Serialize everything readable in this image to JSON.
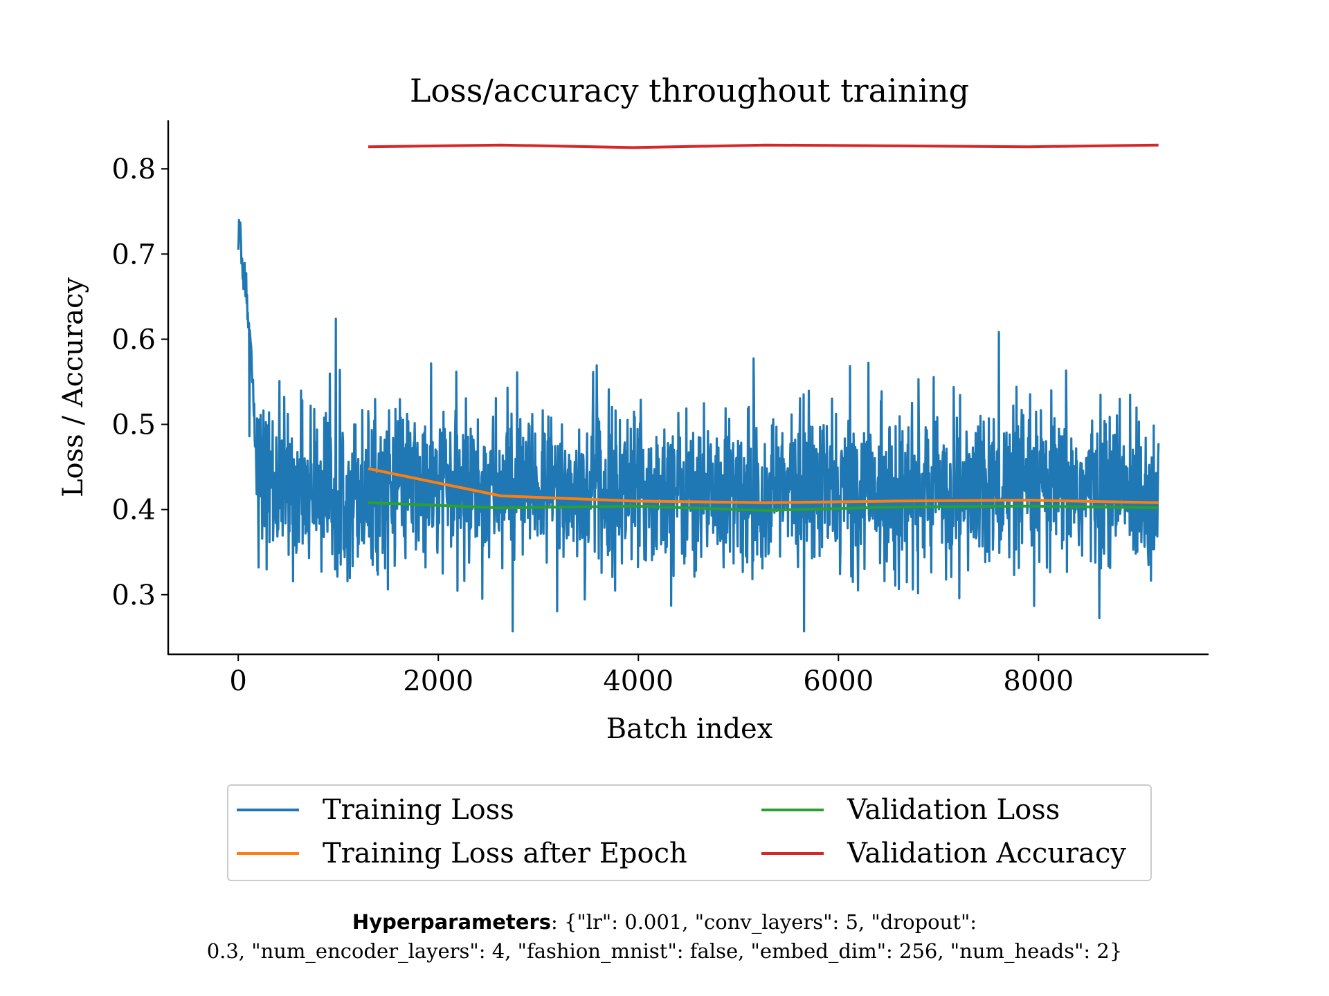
{
  "chart_data": {
    "type": "line",
    "title": "Loss/accuracy throughout training",
    "xlabel": "Batch index",
    "ylabel": "Loss / Accuracy",
    "xlim": [
      -700,
      9700
    ],
    "ylim": [
      0.23,
      0.857
    ],
    "xticks": [
      0,
      2000,
      4000,
      6000,
      8000
    ],
    "xtick_labels": [
      "0",
      "2000",
      "4000",
      "6000",
      "8000"
    ],
    "yticks": [
      0.3,
      0.4,
      0.5,
      0.6,
      0.7,
      0.8
    ],
    "ytick_labels": [
      "0.3",
      "0.4",
      "0.5",
      "0.6",
      "0.7",
      "0.8"
    ],
    "series": [
      {
        "name": "Training Loss",
        "color": "#1f77b4",
        "style": "noisy",
        "x": [
          0,
          20,
          40,
          60,
          80,
          100,
          130,
          160,
          200,
          300,
          500,
          1000,
          1300,
          2000,
          3000,
          5000,
          7000,
          9200
        ],
        "values": [
          0.71,
          0.73,
          0.69,
          0.68,
          0.66,
          0.63,
          0.58,
          0.5,
          0.44,
          0.43,
          0.425,
          0.425,
          0.425,
          0.424,
          0.423,
          0.422,
          0.422,
          0.422
        ],
        "noise_std": 0.045,
        "min": 0.257,
        "max": 0.754
      },
      {
        "name": "Training Loss after Epoch",
        "color": "#ff7f0e",
        "x": [
          1300,
          2630,
          3950,
          5270,
          6580,
          7900,
          9200
        ],
        "values": [
          0.448,
          0.416,
          0.41,
          0.408,
          0.41,
          0.411,
          0.408
        ]
      },
      {
        "name": "Validation Loss",
        "color": "#2ca02c",
        "x": [
          1300,
          2630,
          3950,
          5270,
          6580,
          7900,
          9200
        ],
        "values": [
          0.408,
          0.402,
          0.404,
          0.399,
          0.403,
          0.404,
          0.402
        ]
      },
      {
        "name": "Validation Accuracy",
        "color": "#d62728",
        "x": [
          1300,
          2630,
          3950,
          5270,
          6580,
          7900,
          9200
        ],
        "values": [
          0.826,
          0.828,
          0.825,
          0.828,
          0.827,
          0.826,
          0.828
        ]
      }
    ],
    "legend": {
      "position": "below",
      "columns": 2,
      "items": [
        "Training Loss",
        "Validation Loss",
        "Training Loss after Epoch",
        "Validation Accuracy"
      ]
    }
  },
  "footer": {
    "key": "Hyperparameters",
    "line1": ": {\"lr\": 0.001, \"conv_layers\": 5, \"dropout\":",
    "line2": "0.3, \"num_encoder_layers\": 4, \"fashion_mnist\": false, \"embed_dim\": 256, \"num_heads\": 2}"
  }
}
